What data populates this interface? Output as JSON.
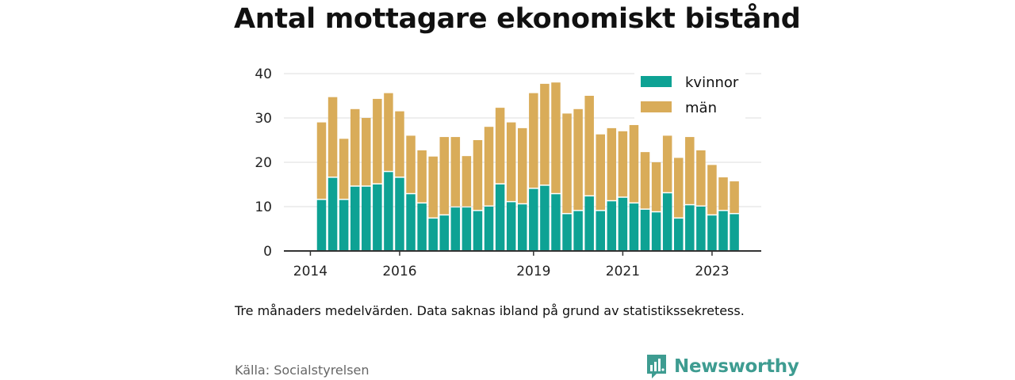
{
  "title": "Antal mottagare ekonomiskt bistånd",
  "note": "Tre månaders medelvärden. Data saknas ibland på grund av statistikssekretess.",
  "source": "Källa: Socialstyrelsen",
  "brand": "Newsworthy",
  "icons": {
    "brand_logo": "bar-chart-speech-bubble-icon"
  },
  "colors": {
    "kvinnor": "#0ea294",
    "man": "#d9ac59",
    "grid": "#dddddd",
    "axis": "#333333",
    "brand": "#3e9c91"
  },
  "chart_data": {
    "type": "bar",
    "stacked": true,
    "x_ticks": [
      {
        "label": "2014",
        "index": -1
      },
      {
        "label": "2016",
        "index": 7
      },
      {
        "label": "2019",
        "index": 19
      },
      {
        "label": "2021",
        "index": 27
      },
      {
        "label": "2023",
        "index": 35
      }
    ],
    "y_ticks": [
      0,
      10,
      20,
      30,
      40
    ],
    "ylim": [
      0,
      40
    ],
    "grid": true,
    "legend_position": "top-right",
    "series": [
      {
        "name": "kvinnor",
        "color": "#0ea294",
        "values": [
          11.5,
          16.5,
          11.5,
          14.5,
          14.5,
          15.0,
          17.8,
          16.5,
          12.8,
          10.7,
          7.3,
          8.0,
          9.8,
          9.8,
          9.0,
          10.0,
          15.0,
          11.0,
          10.5,
          14.0,
          14.7,
          12.8,
          8.3,
          9.0,
          12.3,
          9.0,
          11.2,
          12.0,
          10.7,
          9.3,
          8.7,
          13.0,
          7.3,
          10.3,
          10.0,
          8.0,
          9.0,
          8.3
        ]
      },
      {
        "name": "män",
        "color": "#d9ac59",
        "values": [
          17.5,
          18.2,
          13.8,
          17.5,
          15.5,
          19.3,
          17.8,
          15.0,
          13.2,
          12.0,
          14.0,
          17.7,
          15.9,
          11.6,
          16.0,
          18.0,
          17.3,
          18.0,
          17.2,
          21.6,
          23.0,
          25.2,
          22.7,
          23.0,
          22.7,
          17.3,
          16.5,
          15.0,
          17.7,
          13.0,
          11.3,
          13.0,
          13.7,
          15.4,
          12.7,
          11.4,
          7.6,
          7.4
        ]
      }
    ]
  }
}
